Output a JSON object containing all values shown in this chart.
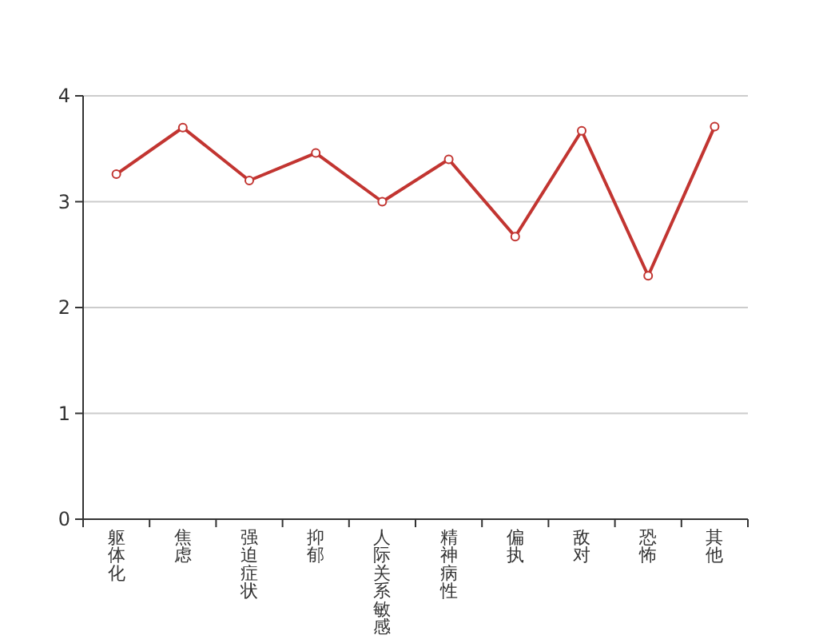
{
  "chart_data": {
    "type": "line",
    "categories": [
      "躯体化",
      "焦虑",
      "强迫症状",
      "抑郁",
      "人际关系敏感",
      "精神病性",
      "偏执",
      "敌对",
      "恐怖",
      "其他"
    ],
    "series": [
      {
        "color": "#c23531",
        "values": [
          3.26,
          3.7,
          3.2,
          3.46,
          3.0,
          3.4,
          2.67,
          3.67,
          2.3,
          3.71
        ]
      }
    ],
    "ylim": [
      0,
      4
    ],
    "yticks": [
      0,
      1,
      2,
      3,
      4
    ],
    "grid": "y",
    "marker": "circle"
  }
}
